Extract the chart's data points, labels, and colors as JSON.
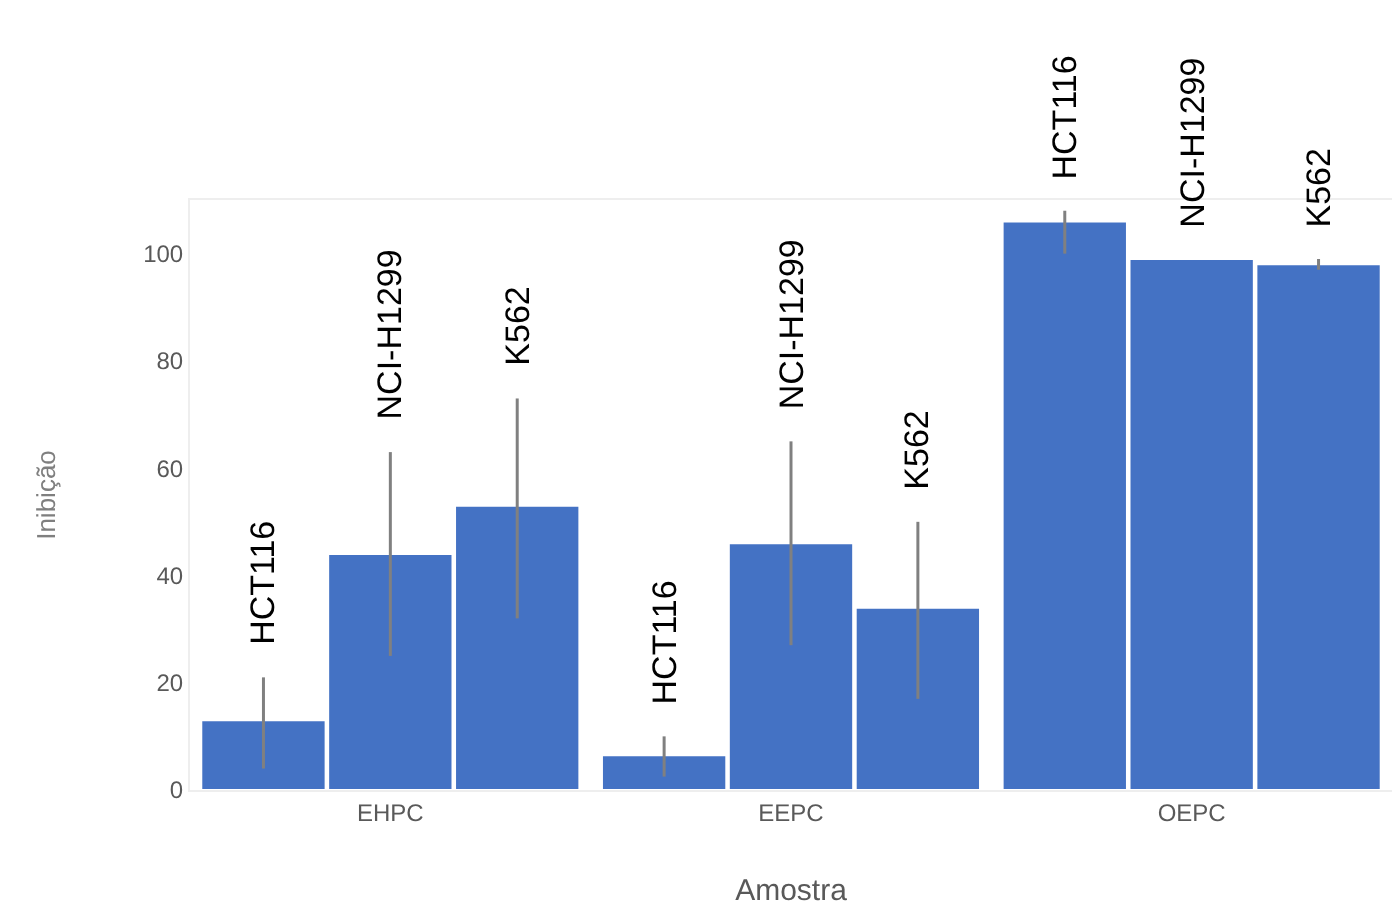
{
  "chart_data": {
    "type": "bar",
    "xlabel": "Amostra",
    "ylabel": "Inibição",
    "categories": [
      "EHPC",
      "EEPC",
      "OEPC"
    ],
    "series": [
      {
        "name": "HCT116",
        "color": "#4472c4",
        "values": [
          13,
          6.5,
          106
        ],
        "errors": [
          [
            4,
            21
          ],
          [
            2.5,
            10
          ],
          [
            100,
            108
          ]
        ]
      },
      {
        "name": "NCI-H1299",
        "color": "#4472c4",
        "values": [
          44,
          46,
          99
        ],
        "errors": [
          [
            25,
            63
          ],
          [
            27,
            65
          ],
          [
            99,
            99
          ]
        ]
      },
      {
        "name": "K562",
        "color": "#4472c4",
        "values": [
          53,
          34,
          98
        ],
        "errors": [
          [
            32,
            73
          ],
          [
            17,
            50
          ],
          [
            97,
            99
          ]
        ]
      }
    ],
    "ylim": [
      0,
      110
    ],
    "yticks": [
      0,
      20,
      40,
      60,
      80,
      100
    ],
    "grid": false,
    "legend": false
  }
}
